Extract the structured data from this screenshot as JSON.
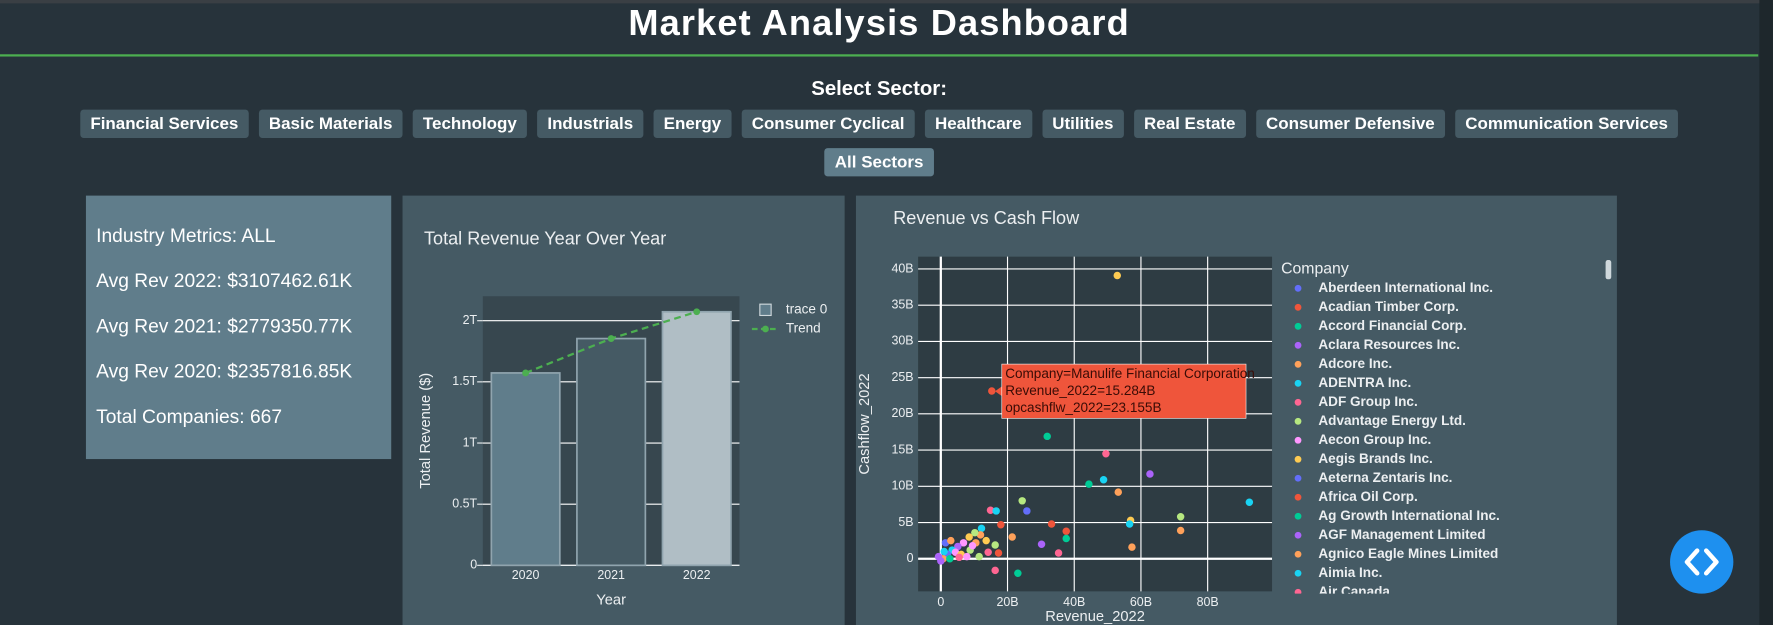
{
  "header": {
    "title": "Market Analysis Dashboard"
  },
  "sector_selector": {
    "label": "Select Sector:",
    "buttons": [
      "Financial Services",
      "Basic Materials",
      "Technology",
      "Industrials",
      "Energy",
      "Consumer Cyclical",
      "Healthcare",
      "Utilities",
      "Real Estate",
      "Consumer Defensive",
      "Communication Services"
    ],
    "all_button": "All Sectors"
  },
  "metrics": {
    "lines": [
      "Industry Metrics: ALL",
      "Avg Rev 2022: $3107462.61K",
      "Avg Rev 2021: $2779350.77K",
      "Avg Rev 2020: $2357816.85K",
      "Total Companies: 667"
    ]
  },
  "chart_data": [
    {
      "type": "bar",
      "title": "Total Revenue Year Over Year",
      "x_label": "Year",
      "y_label": "Total Revenue ($)",
      "categories": [
        "2020",
        "2021",
        "2022"
      ],
      "series": [
        {
          "name": "trace 0",
          "type": "bar",
          "colors": [
            "#607d8b",
            "#455a64",
            "#b0bec5"
          ],
          "values": [
            1.573,
            1.854,
            2.073
          ]
        },
        {
          "name": "Trend",
          "type": "line",
          "color": "#4caf50",
          "dash": true,
          "values": [
            1.573,
            1.854,
            2.073
          ]
        }
      ],
      "ylim": [
        0,
        2.2
      ],
      "yticks": [
        0,
        {
          "value": 0.5,
          "label": "0.5T"
        },
        {
          "value": 1,
          "label": "1T"
        },
        {
          "value": 1.5,
          "label": "1.5T"
        },
        {
          "value": 2,
          "label": "2T"
        }
      ],
      "grid": true
    },
    {
      "type": "scatter",
      "title": "Revenue vs Cash Flow",
      "x_label": "Revenue_2022",
      "y_label": "Cashflow_2022",
      "series": [
        {
          "x": [
            52.9,
            15.284,
            31.9,
            49.5,
            62.7,
            48.8,
            44.4,
            53.2,
            92.5,
            24.4,
            25.8,
            14.9,
            16.6,
            71.9,
            56.9,
            56.6,
            33.2,
            37.6,
            37.6,
            71.9,
            57.3,
            18.0,
            17.3,
            30.2,
            35.3,
            16.3,
            23.1,
            12.2,
            11.9,
            10.2,
            8.5,
            6.8,
            5.1,
            3.4,
            2.0,
            0.7,
            0,
            1.4,
            4.4,
            6.1,
            8.8,
            10.5,
            13.6,
            14.2,
            16.3,
            21.4,
            2.7,
            7.8,
            11.5,
            -0.7,
            3.0,
            9.5,
            5.5,
            1.0
          ],
          "y": [
            39.1,
            23.155,
            16.9,
            14.5,
            11.7,
            10.9,
            10.3,
            9.2,
            7.8,
            8.0,
            6.6,
            6.7,
            6.6,
            5.8,
            5.3,
            4.8,
            4.8,
            3.8,
            2.8,
            3.9,
            1.6,
            4.7,
            0.8,
            2.0,
            0.8,
            -1.6,
            -2.0,
            4.2,
            3.3,
            3.6,
            3.0,
            2.2,
            1.7,
            1.2,
            0.6,
            0,
            -0.3,
            2.2,
            0.9,
            0.6,
            1.2,
            2.2,
            2.5,
            0.9,
            1.9,
            3.0,
            0,
            0.3,
            0.3,
            0.3,
            2.5,
            1.8,
            0.2,
            1.0
          ],
          "colors": [
            "#fecb52",
            "#ef553b",
            "#00cc96",
            "#ff6692",
            "#ab63fa",
            "#19d3f3",
            "#00cc96",
            "#ffa15a",
            "#19d3f3",
            "#b6e880",
            "#636efa",
            "#ff6692",
            "#19d3f3",
            "#b6e880",
            "#fecb52",
            "#19d3f3",
            "#ef553b",
            "#ef553b",
            "#00cc96",
            "#ffa15a",
            "#ffa15a",
            "#ef553b",
            "#ef553b",
            "#ab63fa",
            "#ff6692",
            "#ff6692",
            "#00cc96",
            "#19d3f3",
            "#ffa15a",
            "#b6e880",
            "#fecb52",
            "#ff97ff",
            "#ab63fa",
            "#19d3f3",
            "#636efa",
            "#ffa15a",
            "#ab63fa",
            "#636efa",
            "#ff97ff",
            "#fecb52",
            "#b6e880",
            "#ffa15a",
            "#fecb52",
            "#ff6692",
            "#b6e880",
            "#ffa15a",
            "#00cc96",
            "#ff97ff",
            "#b6e880",
            "#ab63fa",
            "#ffa15a",
            "#ff97ff",
            "#ff6692",
            "#19d3f3"
          ]
        }
      ],
      "xlim": [
        -6.8,
        99.3
      ],
      "ylim": [
        -4.5,
        41.7
      ],
      "xticks": [
        0,
        {
          "value": 20,
          "label": "20B"
        },
        {
          "value": 40,
          "label": "40B"
        },
        {
          "value": 60,
          "label": "60B"
        },
        {
          "value": 80,
          "label": "80B"
        }
      ],
      "yticks": [
        0,
        {
          "value": 5,
          "label": "5B"
        },
        {
          "value": 10,
          "label": "10B"
        },
        {
          "value": 15,
          "label": "15B"
        },
        {
          "value": 20,
          "label": "20B"
        },
        {
          "value": 25,
          "label": "25B"
        },
        {
          "value": 30,
          "label": "30B"
        },
        {
          "value": 35,
          "label": "35B"
        },
        {
          "value": 40,
          "label": "40B"
        }
      ],
      "grid": true,
      "legend": {
        "title": "Company",
        "items": [
          {
            "name": "Aberdeen International Inc.",
            "color": "#636efa"
          },
          {
            "name": "Acadian Timber Corp.",
            "color": "#ef553b"
          },
          {
            "name": "Accord Financial Corp.",
            "color": "#00cc96"
          },
          {
            "name": "Aclara Resources Inc.",
            "color": "#ab63fa"
          },
          {
            "name": "Adcore Inc.",
            "color": "#ffa15a"
          },
          {
            "name": "ADENTRA Inc.",
            "color": "#19d3f3"
          },
          {
            "name": "ADF Group Inc.",
            "color": "#ff6692"
          },
          {
            "name": "Advantage Energy Ltd.",
            "color": "#b6e880"
          },
          {
            "name": "Aecon Group Inc.",
            "color": "#ff97ff"
          },
          {
            "name": "Aegis Brands Inc.",
            "color": "#fecb52"
          },
          {
            "name": "Aeterna Zentaris Inc.",
            "color": "#636efa"
          },
          {
            "name": "Africa Oil Corp.",
            "color": "#ef553b"
          },
          {
            "name": "Ag Growth International Inc.",
            "color": "#00cc96"
          },
          {
            "name": "AGF Management Limited",
            "color": "#ab63fa"
          },
          {
            "name": "Agnico Eagle Mines Limited",
            "color": "#ffa15a"
          },
          {
            "name": "Aimia Inc.",
            "color": "#19d3f3"
          },
          {
            "name": "Air Canada",
            "color": "#ff6692"
          }
        ]
      },
      "tooltip": {
        "lines": [
          "Company=Manulife Financial Corporation",
          "Revenue_2022=15.284B",
          "opcashflw_2022=23.155B"
        ]
      }
    }
  ]
}
